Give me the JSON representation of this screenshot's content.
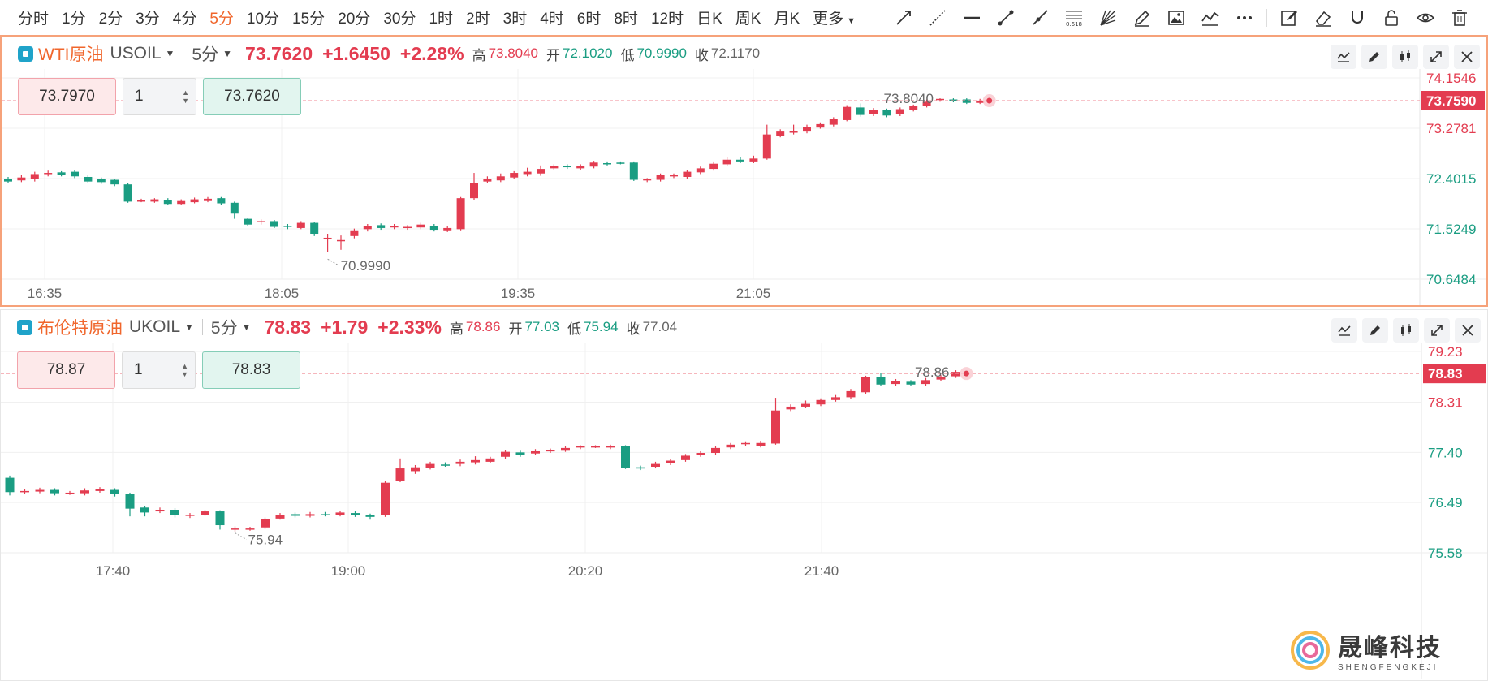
{
  "toolbar": {
    "periods": [
      "分时",
      "1分",
      "2分",
      "3分",
      "4分",
      "5分",
      "10分",
      "15分",
      "20分",
      "30分",
      "1时",
      "2时",
      "3时",
      "4时",
      "6时",
      "8时",
      "12时",
      "日K",
      "周K",
      "月K",
      "更多"
    ],
    "active_period": "5分",
    "tools": [
      "trend-line-icon",
      "extended-line-icon",
      "horizontal-line-icon",
      "segment-icon",
      "ray-icon",
      "fibonacci-icon",
      "gann-fan-icon",
      "brush-icon",
      "image-icon",
      "indicator-icon",
      "more-dots-icon",
      "note-icon",
      "eraser-icon",
      "magnet-icon",
      "lock-icon",
      "eye-icon",
      "trash-icon"
    ],
    "fib_label": "0.618"
  },
  "panels": [
    {
      "name": "WTI原油",
      "code": "USOIL",
      "period": "5分",
      "price": "73.7620",
      "change": "+1.6450",
      "change_pct": "+2.28%",
      "stats": {
        "high_label": "高",
        "high": "73.8040",
        "open_label": "开",
        "open": "72.1020",
        "low_label": "低",
        "low": "70.9990",
        "close_label": "收",
        "close": "72.1170"
      },
      "order": {
        "sell": "73.7970",
        "qty": "1",
        "buy": "73.7620"
      },
      "y_ticks": [
        "74.1546",
        "73.2781",
        "72.4015",
        "71.5249",
        "70.6484"
      ],
      "current_tag": "73.7590",
      "x_ticks": [
        "16:35",
        "18:05",
        "19:35",
        "21:05"
      ],
      "high_label": "73.8040",
      "low_label": "70.9990"
    },
    {
      "name": "布伦特原油",
      "code": "UKOIL",
      "period": "5分",
      "price": "78.83",
      "change": "+1.79",
      "change_pct": "+2.33%",
      "stats": {
        "high_label": "高",
        "high": "78.86",
        "open_label": "开",
        "open": "77.03",
        "low_label": "低",
        "low": "75.94",
        "close_label": "收",
        "close": "77.04"
      },
      "order": {
        "sell": "78.87",
        "qty": "1",
        "buy": "78.83"
      },
      "y_ticks": [
        "79.23",
        "78.31",
        "77.40",
        "76.49",
        "75.58"
      ],
      "current_tag": "78.83",
      "x_ticks": [
        "17:40",
        "19:00",
        "20:20",
        "21:40"
      ],
      "high_label": "78.86",
      "low_label": "75.94"
    }
  ],
  "colors": {
    "up": "#e33c50",
    "down": "#1a9d82",
    "accent": "#f0662c",
    "grid": "#f0f0f0"
  },
  "watermark": {
    "cn": "晟峰科技",
    "en": "SHENGFENGKEJI"
  },
  "chart_data": [
    {
      "type": "candlestick",
      "title": "WTI原油 USOIL 5分",
      "ylim": [
        70.6484,
        74.1546
      ],
      "y_ticks": [
        74.1546,
        73.2781,
        72.4015,
        71.5249,
        70.6484
      ],
      "x_ticks": [
        "16:35",
        "18:05",
        "19:35",
        "21:05"
      ],
      "candles": [
        [
          72.4,
          72.35,
          72.43,
          72.32
        ],
        [
          72.37,
          72.42,
          72.46,
          72.34
        ],
        [
          72.39,
          72.48,
          72.52,
          72.35
        ],
        [
          72.48,
          72.5,
          72.54,
          72.44
        ],
        [
          72.51,
          72.47,
          72.53,
          72.44
        ],
        [
          72.52,
          72.44,
          72.55,
          72.41
        ],
        [
          72.43,
          72.35,
          72.46,
          72.32
        ],
        [
          72.4,
          72.34,
          72.42,
          72.31
        ],
        [
          72.38,
          72.3,
          72.4,
          72.27
        ],
        [
          72.3,
          72.0,
          72.32,
          71.98
        ],
        [
          72.01,
          72.02,
          72.05,
          71.99
        ],
        [
          72.0,
          72.04,
          72.06,
          71.98
        ],
        [
          72.03,
          71.96,
          72.06,
          71.94
        ],
        [
          71.96,
          72.01,
          72.04,
          71.94
        ],
        [
          71.99,
          72.04,
          72.07,
          71.97
        ],
        [
          72.01,
          72.05,
          72.08,
          71.99
        ],
        [
          72.06,
          71.97,
          72.08,
          71.94
        ],
        [
          71.98,
          71.79,
          72.0,
          71.7
        ],
        [
          71.7,
          71.6,
          71.72,
          71.57
        ],
        [
          71.64,
          71.66,
          71.69,
          71.6
        ],
        [
          71.66,
          71.56,
          71.68,
          71.54
        ],
        [
          71.58,
          71.56,
          71.61,
          71.52
        ],
        [
          71.54,
          71.63,
          71.66,
          71.52
        ],
        [
          71.63,
          71.44,
          71.65,
          71.4
        ],
        [
          71.37,
          71.37,
          71.44,
          71.12
        ],
        [
          71.33,
          71.33,
          71.41,
          71.16
        ],
        [
          71.4,
          71.5,
          71.53,
          71.36
        ],
        [
          71.52,
          71.58,
          71.61,
          71.48
        ],
        [
          71.59,
          71.54,
          71.62,
          71.51
        ],
        [
          71.55,
          71.58,
          71.61,
          71.52
        ],
        [
          71.54,
          71.56,
          71.59,
          71.51
        ],
        [
          71.55,
          71.6,
          71.63,
          71.52
        ],
        [
          71.58,
          71.51,
          71.61,
          71.48
        ],
        [
          71.5,
          71.54,
          71.57,
          71.47
        ],
        [
          71.52,
          72.06,
          72.08,
          71.5
        ],
        [
          72.06,
          72.33,
          72.5,
          72.03
        ],
        [
          72.35,
          72.4,
          72.44,
          72.32
        ],
        [
          72.37,
          72.44,
          72.49,
          72.34
        ],
        [
          72.42,
          72.5,
          72.53,
          72.4
        ],
        [
          72.48,
          72.52,
          72.59,
          72.44
        ],
        [
          72.49,
          72.57,
          72.63,
          72.45
        ],
        [
          72.58,
          72.62,
          72.65,
          72.55
        ],
        [
          72.62,
          72.61,
          72.65,
          72.57
        ],
        [
          72.58,
          72.62,
          72.65,
          72.55
        ],
        [
          72.61,
          72.68,
          72.71,
          72.58
        ],
        [
          72.67,
          72.66,
          72.7,
          72.63
        ],
        [
          72.68,
          72.67,
          72.7,
          72.65
        ],
        [
          72.68,
          72.38,
          72.7,
          72.36
        ],
        [
          72.37,
          72.39,
          72.41,
          72.34
        ],
        [
          72.38,
          72.46,
          72.49,
          72.35
        ],
        [
          72.45,
          72.46,
          72.49,
          72.41
        ],
        [
          72.43,
          72.52,
          72.55,
          72.4
        ],
        [
          72.51,
          72.58,
          72.61,
          72.48
        ],
        [
          72.57,
          72.66,
          72.7,
          72.54
        ],
        [
          72.65,
          72.73,
          72.77,
          72.62
        ],
        [
          72.73,
          72.7,
          72.78,
          72.67
        ],
        [
          72.7,
          72.75,
          72.8,
          72.67
        ],
        [
          72.75,
          73.17,
          73.34,
          72.73
        ],
        [
          73.15,
          73.22,
          73.26,
          73.12
        ],
        [
          73.2,
          73.23,
          73.34,
          73.17
        ],
        [
          73.22,
          73.3,
          73.34,
          73.19
        ],
        [
          73.29,
          73.35,
          73.38,
          73.27
        ],
        [
          73.34,
          73.44,
          73.47,
          73.31
        ],
        [
          73.42,
          73.65,
          73.68,
          73.4
        ],
        [
          73.64,
          73.51,
          73.71,
          73.48
        ],
        [
          73.52,
          73.59,
          73.63,
          73.49
        ],
        [
          73.59,
          73.5,
          73.62,
          73.47
        ],
        [
          73.52,
          73.61,
          73.64,
          73.49
        ],
        [
          73.6,
          73.66,
          73.69,
          73.57
        ],
        [
          73.67,
          73.74,
          73.78,
          73.64
        ],
        [
          73.77,
          73.79,
          73.8,
          73.74
        ],
        [
          73.78,
          73.76,
          73.8,
          73.73
        ],
        [
          73.78,
          73.72,
          73.8,
          73.7
        ],
        [
          73.72,
          73.76,
          73.79,
          73.7
        ]
      ],
      "last_price": 73.759,
      "high": 73.804,
      "low": 70.999
    },
    {
      "type": "candlestick",
      "title": "布伦特原油 UKOIL 5分",
      "ylim": [
        75.58,
        79.23
      ],
      "y_ticks": [
        79.23,
        78.31,
        77.4,
        76.49,
        75.58
      ],
      "x_ticks": [
        "17:40",
        "19:00",
        "20:20",
        "21:40"
      ],
      "candles": [
        [
          76.94,
          76.68,
          76.98,
          76.62
        ],
        [
          76.7,
          76.7,
          76.74,
          76.65
        ],
        [
          76.69,
          76.72,
          76.76,
          76.66
        ],
        [
          76.72,
          76.66,
          76.75,
          76.62
        ],
        [
          76.66,
          76.67,
          76.7,
          76.63
        ],
        [
          76.66,
          76.71,
          76.75,
          76.62
        ],
        [
          76.7,
          76.74,
          76.77,
          76.67
        ],
        [
          76.72,
          76.64,
          76.75,
          76.6
        ],
        [
          76.64,
          76.38,
          76.67,
          76.24
        ],
        [
          76.4,
          76.31,
          76.43,
          76.24
        ],
        [
          76.33,
          76.36,
          76.4,
          76.3
        ],
        [
          76.36,
          76.26,
          76.39,
          76.22
        ],
        [
          76.26,
          76.27,
          76.3,
          76.21
        ],
        [
          76.27,
          76.33,
          76.36,
          76.25
        ],
        [
          76.33,
          76.08,
          76.35,
          76.0
        ],
        [
          76.02,
          76.02,
          76.06,
          75.95
        ],
        [
          76.02,
          76.02,
          76.05,
          75.98
        ],
        [
          76.04,
          76.19,
          76.22,
          76.01
        ],
        [
          76.2,
          76.27,
          76.3,
          76.18
        ],
        [
          76.28,
          76.25,
          76.31,
          76.22
        ],
        [
          76.25,
          76.28,
          76.32,
          76.22
        ],
        [
          76.28,
          76.26,
          76.32,
          76.24
        ],
        [
          76.26,
          76.31,
          76.34,
          76.24
        ],
        [
          76.3,
          76.26,
          76.33,
          76.23
        ],
        [
          76.26,
          76.23,
          76.29,
          76.18
        ],
        [
          76.26,
          76.85,
          76.88,
          76.23
        ],
        [
          76.89,
          77.11,
          77.29,
          76.86
        ],
        [
          77.06,
          77.13,
          77.17,
          77.01
        ],
        [
          77.12,
          77.19,
          77.23,
          77.09
        ],
        [
          77.18,
          77.17,
          77.22,
          77.14
        ],
        [
          77.19,
          77.23,
          77.27,
          77.15
        ],
        [
          77.22,
          77.26,
          77.33,
          77.18
        ],
        [
          77.23,
          77.29,
          77.32,
          77.2
        ],
        [
          77.32,
          77.41,
          77.44,
          77.28
        ],
        [
          77.4,
          77.35,
          77.43,
          77.32
        ],
        [
          77.38,
          77.42,
          77.46,
          77.35
        ],
        [
          77.42,
          77.44,
          77.47,
          77.39
        ],
        [
          77.43,
          77.48,
          77.52,
          77.41
        ],
        [
          77.49,
          77.51,
          77.53,
          77.46
        ],
        [
          77.5,
          77.51,
          77.53,
          77.48
        ],
        [
          77.49,
          77.51,
          77.54,
          77.46
        ],
        [
          77.51,
          77.12,
          77.53,
          77.1
        ],
        [
          77.13,
          77.12,
          77.16,
          77.08
        ],
        [
          77.14,
          77.19,
          77.23,
          77.11
        ],
        [
          77.2,
          77.25,
          77.28,
          77.17
        ],
        [
          77.26,
          77.34,
          77.37,
          77.23
        ],
        [
          77.35,
          77.39,
          77.42,
          77.32
        ],
        [
          77.39,
          77.48,
          77.51,
          77.36
        ],
        [
          77.49,
          77.54,
          77.57,
          77.46
        ],
        [
          77.55,
          77.57,
          77.6,
          77.52
        ],
        [
          77.52,
          77.57,
          77.61,
          77.49
        ],
        [
          77.56,
          78.16,
          78.39,
          77.54
        ],
        [
          78.18,
          78.23,
          78.27,
          78.15
        ],
        [
          78.23,
          78.28,
          78.34,
          78.2
        ],
        [
          78.27,
          78.35,
          78.38,
          78.24
        ],
        [
          78.35,
          78.4,
          78.44,
          78.32
        ],
        [
          78.4,
          78.51,
          78.55,
          78.37
        ],
        [
          78.49,
          78.76,
          78.79,
          78.46
        ],
        [
          78.77,
          78.63,
          78.84,
          78.6
        ],
        [
          78.64,
          78.69,
          78.73,
          78.61
        ],
        [
          78.68,
          78.63,
          78.71,
          78.6
        ],
        [
          78.64,
          78.71,
          78.75,
          78.61
        ],
        [
          78.72,
          78.77,
          78.8,
          78.69
        ],
        [
          78.78,
          78.86,
          78.89,
          78.75
        ]
      ],
      "last_price": 78.83,
      "high": 78.86,
      "low": 75.94
    }
  ]
}
